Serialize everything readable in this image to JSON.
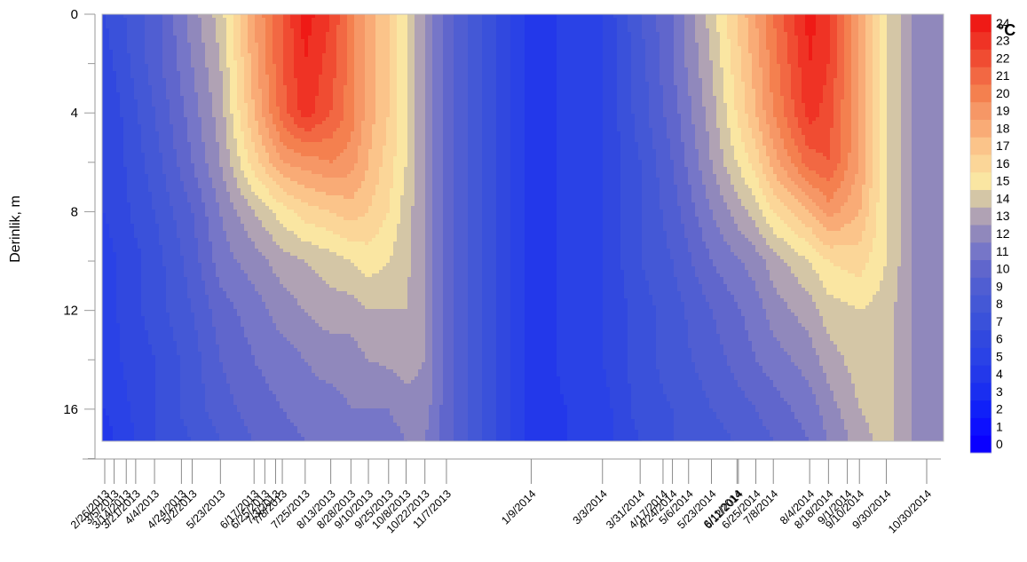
{
  "chart_data": {
    "type": "heatmap",
    "title": "",
    "xlabel": "",
    "ylabel": "Derinlik, m",
    "y_axis": {
      "range": [
        0,
        17.3
      ],
      "inverted": true,
      "ticks": [
        "0",
        "4",
        "8",
        "12",
        "16"
      ]
    },
    "x_tick_labels": [
      "2/26/2013",
      "3/5/2013",
      "3/14/2013",
      "3/21/2013",
      "4/4/2013",
      "4/24/2013",
      "5/2/2013",
      "5/23/2013",
      "6/17/2013",
      "6/25/2013",
      "7/3/2013",
      "7/8/2013",
      "7/25/2013",
      "8/13/2013",
      "8/28/2013",
      "9/10/2013",
      "9/25/2013",
      "10/8/2013",
      "10/22/2013",
      "11/7/2013",
      "1/9/2014",
      "3/3/2014",
      "3/31/2014",
      "4/17/2014",
      "4/24/2014",
      "5/6/2014",
      "5/23/2014",
      "6/11/2014",
      "6/12/2014",
      "6/25/2014",
      "7/8/2014",
      "8/4/2014",
      "8/18/2014",
      "9/1/2014",
      "9/10/2014",
      "9/30/2014",
      "10/30/2014"
    ],
    "colorbar": {
      "unit": "°C",
      "levels": [
        "0",
        "1",
        "2",
        "3",
        "4",
        "5",
        "6",
        "7",
        "8",
        "9",
        "10",
        "11",
        "12",
        "13",
        "14",
        "15",
        "16",
        "17",
        "18",
        "19",
        "20",
        "21",
        "22",
        "23",
        "24"
      ],
      "colors": [
        "#0a00ff",
        "#0d10fe",
        "#1020f8",
        "#1a2ef0",
        "#2338ea",
        "#2a42e6",
        "#3148df",
        "#3a51da",
        "#4458d6",
        "#505ed2",
        "#6066cc",
        "#7676c8",
        "#9088bc",
        "#b0a2b4",
        "#d4c6a6",
        "#fae6a2",
        "#fbd698",
        "#fbc48a",
        "#f9ab76",
        "#f69766",
        "#f4804f",
        "#f26843",
        "#f04c32",
        "#ef3325",
        "#ef1a16"
      ]
    },
    "temperature_grid": {
      "depths": [
        0,
        2,
        4,
        6,
        8,
        10,
        12,
        14,
        16,
        17.3
      ],
      "dates": [
        "2/26/2013",
        "4/4/2013",
        "5/2/2013",
        "5/23/2013",
        "6/17/2013",
        "7/8/2013",
        "7/25/2013",
        "8/13/2013",
        "8/28/2013",
        "9/10/2013",
        "9/25/2013",
        "10/8/2013",
        "10/22/2013",
        "11/7/2013",
        "1/9/2014",
        "3/3/2014",
        "3/31/2014",
        "4/24/2014",
        "5/23/2014",
        "6/25/2014",
        "7/8/2014",
        "8/4/2014",
        "8/18/2014",
        "9/10/2014",
        "9/30/2014",
        "10/30/2014"
      ],
      "values": [
        [
          7,
          9.5,
          12.5,
          14.5,
          19,
          22,
          24.5,
          23,
          20.5,
          18.5,
          17,
          15,
          13,
          10.5,
          4.5,
          6,
          9,
          11,
          14.5,
          19,
          21,
          24.5,
          23,
          19,
          15,
          12
        ],
        [
          6.5,
          9.5,
          12,
          14,
          18.5,
          22,
          24,
          22.5,
          20.5,
          18.5,
          17,
          15,
          13,
          10.5,
          4.5,
          6,
          8.5,
          11,
          14,
          18.5,
          20.5,
          24,
          23,
          19,
          15,
          12
        ],
        [
          6,
          9,
          11.5,
          13.5,
          18,
          21.5,
          23.5,
          22,
          20.5,
          18.5,
          17,
          15,
          13,
          10.5,
          4.5,
          6,
          8.5,
          10.5,
          13.5,
          18,
          20,
          23.5,
          22.5,
          19,
          15,
          12
        ],
        [
          6,
          8.5,
          11,
          13,
          16.5,
          19,
          19.5,
          20,
          19.5,
          18,
          16.5,
          15,
          13,
          10.5,
          4.5,
          6,
          8,
          10,
          13,
          16.5,
          18.5,
          21.5,
          22,
          19,
          15,
          12
        ],
        [
          6,
          8,
          10,
          12,
          14,
          15.5,
          16.5,
          17,
          17.5,
          17,
          16,
          14.5,
          13,
          10.5,
          4.5,
          6,
          8,
          9.5,
          12,
          14.5,
          16,
          18,
          19.5,
          18,
          15,
          12
        ],
        [
          5.5,
          7.5,
          9.5,
          11.5,
          12.5,
          13.5,
          14,
          14.5,
          15,
          15.5,
          15,
          14.3,
          13,
          10.5,
          4.5,
          6,
          8,
          9,
          11,
          12.5,
          13.5,
          15,
          16,
          16.5,
          15,
          12
        ],
        [
          5.5,
          7.5,
          9,
          10.5,
          11.5,
          12.5,
          13,
          13.5,
          13.5,
          14,
          14,
          14,
          13,
          10.5,
          4.5,
          6,
          7.5,
          8.5,
          10,
          11.5,
          12.5,
          13.5,
          14.5,
          15,
          14.5,
          12
        ],
        [
          5.5,
          7,
          8.5,
          10,
          11,
          11.5,
          12,
          12.5,
          12.5,
          13,
          13.2,
          13.5,
          13,
          10.5,
          4.5,
          6,
          7.5,
          8.5,
          9.5,
          11,
          11.5,
          12.5,
          13.5,
          14.5,
          14.5,
          12
        ],
        [
          5,
          7,
          8.5,
          9.5,
          10.5,
          11,
          11.5,
          11.5,
          12,
          12,
          12,
          12.5,
          12.5,
          10.5,
          4.5,
          5.5,
          7.5,
          8,
          9,
          10,
          10.5,
          11.5,
          12.5,
          14,
          14.5,
          12
        ],
        [
          4.5,
          7,
          8,
          9,
          10,
          10.5,
          11,
          11,
          11.5,
          11.5,
          11.5,
          12,
          12,
          10.5,
          4.5,
          5.5,
          7,
          8,
          8.5,
          9.5,
          10,
          11,
          12,
          13.5,
          14.5,
          12
        ]
      ]
    }
  }
}
